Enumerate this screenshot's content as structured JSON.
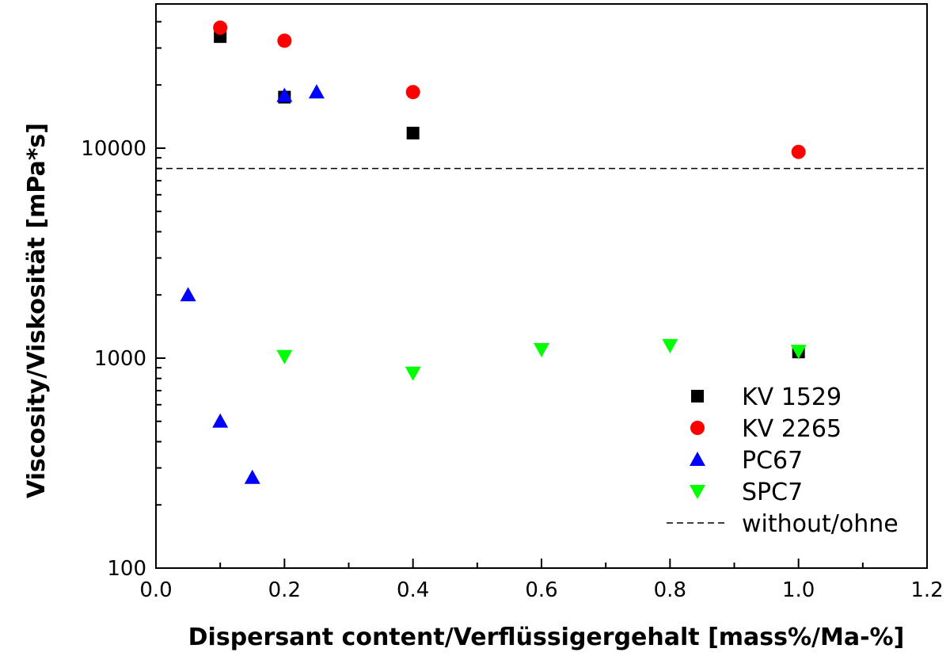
{
  "chart_data": {
    "type": "scatter",
    "title": "",
    "xlabel": "Dispersant content/Verflüssigergehalt [mass%/Ma-%]",
    "ylabel": "Viscosity/Viskosität [mPa*s]",
    "xlim": [
      0.0,
      1.2
    ],
    "ylim": [
      100,
      50000
    ],
    "yscale": "log",
    "grid": false,
    "legend_position": "bottom-right",
    "x_ticks": [
      "0.0",
      "0.2",
      "0.4",
      "0.6",
      "0.8",
      "1.0",
      "1.2"
    ],
    "y_ticks": [
      "100",
      "1000",
      "10000"
    ],
    "series": [
      {
        "name": "KV 1529",
        "marker": "square",
        "color": "#000000",
        "points": [
          [
            0.1,
            34000
          ],
          [
            0.2,
            17500
          ],
          [
            0.4,
            11800
          ],
          [
            1.0,
            1070
          ]
        ]
      },
      {
        "name": "KV 2265",
        "marker": "circle",
        "color": "#ff0000",
        "points": [
          [
            0.1,
            37500
          ],
          [
            0.2,
            32500
          ],
          [
            0.4,
            18500
          ],
          [
            1.0,
            9600
          ]
        ]
      },
      {
        "name": "PC67",
        "marker": "triangle-up",
        "color": "#0000ff",
        "points": [
          [
            0.05,
            2000
          ],
          [
            0.1,
            500
          ],
          [
            0.15,
            270
          ],
          [
            0.2,
            17800
          ],
          [
            0.25,
            18500
          ]
        ]
      },
      {
        "name": "SPC7",
        "marker": "triangle-down",
        "color": "#00ff00",
        "points": [
          [
            0.2,
            1020
          ],
          [
            0.4,
            850
          ],
          [
            0.6,
            1100
          ],
          [
            0.8,
            1150
          ],
          [
            1.0,
            1080
          ]
        ]
      }
    ],
    "reference_lines": [
      {
        "name": "without/ohne",
        "style": "dashed",
        "color": "#000000",
        "y": 8000
      }
    ]
  }
}
